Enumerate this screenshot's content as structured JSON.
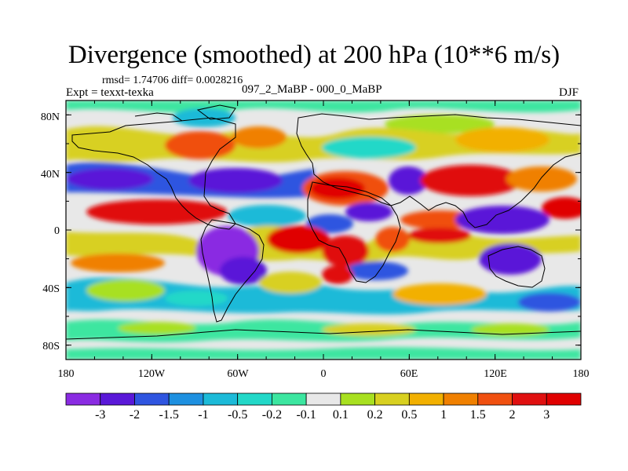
{
  "title": "Divergence (smoothed) at 200 hPa (10**6 m/s)",
  "stats": "rmsd= 1.74706 diff= 0.0028216",
  "experiment": "Expt = texxt-texka",
  "difference": "097_2_MaBP - 000_0_MaBP",
  "season": "DJF",
  "axes": {
    "x_ticks": [
      "180",
      "120W",
      "60W",
      "0",
      "60E",
      "120E",
      "180"
    ],
    "y_ticks": [
      "80N",
      "40N",
      "0",
      "40S",
      "80S"
    ]
  },
  "colorbar": {
    "labels": [
      "-3",
      "-2",
      "-1.5",
      "-1",
      "-0.5",
      "-0.2",
      "-0.1",
      "0.1",
      "0.2",
      "0.5",
      "1",
      "1.5",
      "2",
      "3"
    ],
    "colors": [
      "#8a2be2",
      "#5a18d8",
      "#2f55e0",
      "#1e90e0",
      "#1cbad8",
      "#22d8c8",
      "#3ce6a0",
      "#e8e8e8",
      "#a8e020",
      "#d8d020",
      "#f2b000",
      "#f08000",
      "#f05010",
      "#e01010",
      "#e00000"
    ]
  }
}
